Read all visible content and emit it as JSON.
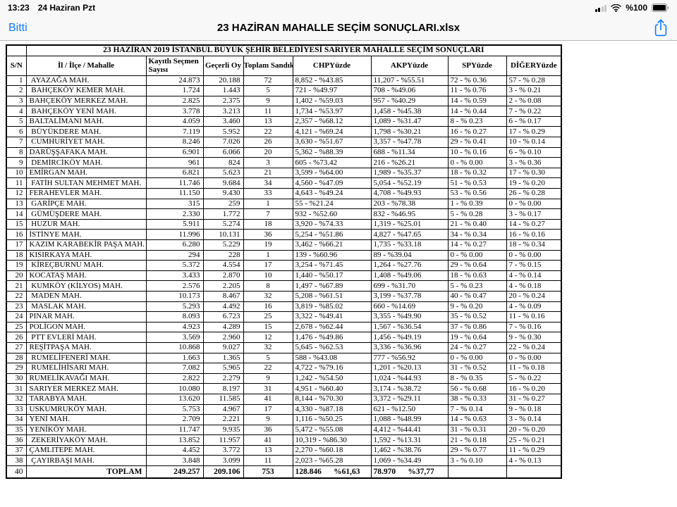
{
  "status_bar": {
    "time": "13:23",
    "date": "24 Haziran Pzt",
    "battery_label": "%100"
  },
  "nav_bar": {
    "done_label": "Bitti",
    "title": "23 HAZİRAN MAHALLE SEÇİM SONUÇLARI.xlsx"
  },
  "colors": {
    "accent_blue": "#0a7aff",
    "chrome_bg": "#f8f8f8",
    "table_border": "#000000"
  },
  "table": {
    "title": "23 HAZİRAN 2019 İSTANBUL BÜYÜK ŞEHİR BELEDİYESİ SARIYER MAHALLE SEÇİM SONUÇLARI",
    "columns": [
      "S/N",
      "İl / İlçe / Mahalle",
      "Kayıtlı Seçmen Sayısı",
      "Geçerli Oy",
      "Toplam Sandık",
      "CHPYüzde",
      "AKPYüzde",
      "SPYüzde",
      "DİĞERYüzde"
    ],
    "rows": [
      [
        "1",
        " AYAZAĞA MAH.",
        "24.873",
        "20.188",
        "72",
        "8,852 - %43.85",
        "11,207 - %55.51",
        "72 - % 0.36",
        "57 - % 0.28"
      ],
      [
        "2",
        " BAHÇEKÖY KEMER MAH.",
        "1.724",
        "1.443",
        "5",
        "721 - %49.97",
        "708 - %49.06",
        "11 - % 0.76",
        "3 - % 0.21"
      ],
      [
        "3",
        "BAHÇEKÖY MERKEZ MAH.",
        "2.825",
        "2.375",
        "9",
        "1,402 - %59.03",
        "957 - %40.29",
        "14 - % 0.59",
        "2 - % 0.08"
      ],
      [
        "4",
        " BAHÇEKÖY YENİ MAH.",
        "3.778",
        "3.213",
        "11",
        "1,734 - %53.97",
        "1,458 - %45.38",
        "14 - % 0.44",
        "7 - % 0.22"
      ],
      [
        "5",
        "BALTALİMANI MAH.",
        "4.059",
        "3.460",
        "13",
        "2,357 - %68.12",
        "1,089 - %31.47",
        "8 - % 0.23",
        "6 - % 0.17"
      ],
      [
        "6",
        " BÜYÜKDERE MAH.",
        "7.119",
        "5.952",
        "22",
        "4,121 - %69.24",
        "1,798 - %30.21",
        "16 - % 0.27",
        "17 - % 0.29"
      ],
      [
        "7",
        " CUMHURİYET MAH.",
        "8.246",
        "7.026",
        "26",
        "3,630 - %51.67",
        "3,357 - %47.78",
        "29 - % 0.41",
        "10 - % 0.14"
      ],
      [
        "8",
        "DARÜŞŞAFAKA MAH.",
        "6.901",
        "6.066",
        "20",
        "5,362 - %88.39",
        "688 - %11.34",
        "10 - % 0.16",
        "6 - % 0.10"
      ],
      [
        "9",
        " DEMİRCİKÖY MAH.",
        "961",
        "824",
        "3",
        "605 - %73.42",
        "216 - %26.21",
        "0 - % 0.00",
        "3 - % 0.36"
      ],
      [
        "10",
        "EMİRGAN MAH.",
        "6.821",
        "5.623",
        "21",
        "3,599 - %64.00",
        "1,989 - %35.37",
        "18 - % 0.32",
        "17 - % 0.30"
      ],
      [
        "11",
        " FATİH SULTAN MEHMET MAH.",
        "11.746",
        "9.684",
        "34",
        "4,560 - %47.09",
        "5,054 - %52.19",
        "51 - % 0.53",
        "19 - % 0.20"
      ],
      [
        "12",
        "FERAHEVLER MAH.",
        "11.150",
        "9.430",
        "33",
        "4,643 - %49.24",
        "4,708 - %49.93",
        "53 - % 0.56",
        "26 - % 0.28"
      ],
      [
        "13",
        " GARİPÇE MAH.",
        "315",
        "259",
        "1",
        "55 - %21.24",
        "203 - %78.38",
        "1 - % 0.39",
        "0 - % 0.00"
      ],
      [
        "14",
        " GÜMÜŞDERE MAH.",
        "2.330",
        "1.772",
        "7",
        "932 - %52.60",
        "832 - %46.95",
        "5 - % 0.28",
        "3 - % 0.17"
      ],
      [
        "15",
        " HUZUR MAH.",
        "5.911",
        "5.274",
        "18",
        "3,920 - %74.33",
        "1,319 - %25.01",
        "21 - % 0.40",
        "14 - % 0.27"
      ],
      [
        "16",
        "İSTİNYE MAH.",
        "11.996",
        "10.131",
        "36",
        "5,254 - %51.86",
        "4,827 - %47.65",
        "34 - % 0.34",
        "16 - % 0.16"
      ],
      [
        "17",
        "KAZIM KARABEKİR PAŞA MAH.",
        "6.280",
        "5.229",
        "19",
        "3,462 - %66.21",
        "1,735 - %33.18",
        "14 - % 0.27",
        "18 - % 0.34"
      ],
      [
        "18",
        "KISIRKAYA MAH.",
        "294",
        "228",
        "1",
        "139 - %60.96",
        "89 - %39.04",
        "0 - % 0.00",
        "0 - % 0.00"
      ],
      [
        "19",
        " KİREÇBURNU MAH.",
        "5.372",
        "4.554",
        "17",
        "3,254 - %71.45",
        "1,264 - %27.76",
        "29 - % 0.64",
        "7 - % 0.15"
      ],
      [
        "20",
        "KOCATAŞ MAH.",
        "3.433",
        "2.870",
        "10",
        "1,440 - %50.17",
        "1,408 - %49.06",
        "18 - % 0.63",
        "4 - % 0.14"
      ],
      [
        "21",
        " KUMKÖY (KİLYOS) MAH.",
        "2.576",
        "2.205",
        "8",
        "1,497 - %67.89",
        "699 - %31.70",
        "5 - % 0.23",
        "4 - % 0.18"
      ],
      [
        "22",
        " MADEN MAH.",
        "10.173",
        "8.467",
        "32",
        "5,208 - %61.51",
        "3,199 - %37.78",
        "40 - % 0.47",
        "20 - % 0.24"
      ],
      [
        "23",
        " MASLAK MAH.",
        "5.293",
        "4.492",
        "16",
        "3,819 - %85.02",
        "660 - %14.69",
        "9 - % 0.20",
        "4 - % 0.09"
      ],
      [
        "24",
        "PINAR MAH.",
        "8.093",
        "6.723",
        "25",
        "3,322 - %49.41",
        "3,355 - %49.90",
        "35 - % 0.52",
        "11 - % 0.16"
      ],
      [
        "25",
        "POLİGON MAH.",
        "4.923",
        "4.289",
        "15",
        "2,678 - %62.44",
        "1,567 - %36.54",
        "37 - % 0.86",
        "7 - % 0.16"
      ],
      [
        "26",
        " PTT EVLERİ MAH.",
        "3.569",
        "2.960",
        "12",
        "1,476 - %49.86",
        "1,456 - %49.19",
        "19 - % 0.64",
        "9 - % 0.30"
      ],
      [
        "27",
        "REŞİTPAŞA MAH.",
        "10.868",
        "9.027",
        "32",
        "5,645 - %62.53",
        "3,336 - %36.96",
        "24 - % 0.27",
        "22 - % 0.24"
      ],
      [
        "28",
        " RUMELİFENERİ MAH.",
        "1.663",
        "1.365",
        "5",
        "588 - %43.08",
        "777 - %56.92",
        "0 - % 0.00",
        "0 - % 0.00"
      ],
      [
        "29",
        " RUMELİHİSARI MAH.",
        "7.082",
        "5.965",
        "22",
        "4,722 - %79.16",
        "1,201 - %20.13",
        "31 - % 0.52",
        "11 - % 0.18"
      ],
      [
        "30",
        "RUMELİKAVAĞI MAH.",
        "2.822",
        "2.279",
        "9",
        "1,242 - %54.50",
        "1,024 - %44.93",
        "8 - % 0.35",
        "5 - % 0.22"
      ],
      [
        "31",
        "SARIYER MERKEZ MAH.",
        "10.080",
        "8.197",
        "31",
        "4,951 - %60.40",
        "3,174 - %38.72",
        "56 - % 0.68",
        "16 - % 0.20"
      ],
      [
        "32",
        "TARABYA MAH.",
        "13.620",
        "11.585",
        "41",
        "8,144 - %70.30",
        "3,372 - %29.11",
        "38 - % 0.33",
        "31 - % 0.27"
      ],
      [
        "33",
        "USKUMRUKÖY MAH.",
        "5.753",
        "4.967",
        "17",
        "4,330 - %87.18",
        "621 - %12.50",
        "7 - % 0.14",
        "9 - % 0.18"
      ],
      [
        "34",
        "YENİ MAH.",
        "2.709",
        "2.221",
        "9",
        "1,116 - %50.25",
        "1,088 - %48.99",
        "14 - % 0.63",
        "3 - % 0.14"
      ],
      [
        "35",
        "YENİKÖY MAH.",
        "11.747",
        "9.935",
        "36",
        "5,472 - %55.08",
        "4,412 - %44.41",
        "31 - % 0.31",
        "20 - % 0.20"
      ],
      [
        "36",
        " ZEKERİYAKÖY MAH.",
        "13.852",
        "11.957",
        "41",
        "10,319 - %86.30",
        "1,592 - %13.31",
        "21 - % 0.18",
        "25 - % 0.21"
      ],
      [
        "37",
        "ÇAMLITEPE MAH.",
        "4.452",
        "3.772",
        "13",
        "2,270 - %60.18",
        "1,462 - %38.76",
        "29 - % 0.77",
        "11 - % 0.29"
      ],
      [
        "38",
        " ÇAYIRBAŞI MAH.",
        "3.848",
        "3.099",
        "11",
        "2,023 - %65.28",
        "1,069 - %34.49",
        "3 - % 0.10",
        "4 - % 0.13"
      ]
    ],
    "total_row": [
      "40",
      "TOPLAM",
      "249.257",
      "209.106",
      "753",
      "128.846      %61,63",
      "78.970      %37,77",
      "",
      ""
    ]
  }
}
